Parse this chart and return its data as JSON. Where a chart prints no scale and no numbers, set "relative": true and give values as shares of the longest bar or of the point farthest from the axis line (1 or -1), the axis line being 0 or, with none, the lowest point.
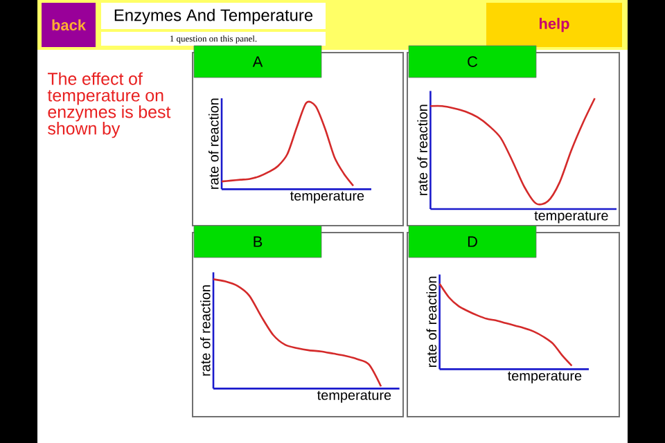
{
  "chart_data": [
    {
      "type": "other",
      "title": "Enzymes And Temperature",
      "subtitle": "1 question on this panel.",
      "annotations": [
        "back",
        "help",
        "The effect of temperature on enzymes is best shown by"
      ]
    },
    {
      "type": "line",
      "title": "A",
      "xlabel": "temperature",
      "ylabel": "rate of reaction",
      "relative": true,
      "categories": [
        null,
        null,
        null,
        null,
        null,
        null,
        null,
        null,
        null,
        null,
        null,
        null,
        null,
        null,
        null
      ],
      "series": [
        {
          "color": "#d42a2a",
          "values": [
            0.09,
            0.1,
            0.11,
            0.12,
            0.15,
            0.2,
            0.27,
            0.41,
            0.72,
            1.0,
            0.96,
            0.7,
            0.37,
            0.18,
            0.04
          ]
        }
      ]
    },
    {
      "type": "line",
      "title": "C",
      "xlabel": "temperature",
      "ylabel": "rate of reaction",
      "relative": true,
      "categories": [
        null,
        null,
        null,
        null,
        null,
        null,
        null,
        null,
        null,
        null,
        null,
        null,
        null,
        null,
        null
      ],
      "series": [
        {
          "color": "#d42a2a",
          "values": [
            0.93,
            0.93,
            0.91,
            0.88,
            0.83,
            0.75,
            0.64,
            0.43,
            0.2,
            0.05,
            0.07,
            0.24,
            0.53,
            0.78,
            1.0
          ]
        }
      ]
    },
    {
      "type": "line",
      "title": "B",
      "xlabel": "temperature",
      "ylabel": "rate of reaction",
      "relative": true,
      "categories": [
        null,
        null,
        null,
        null,
        null,
        null,
        null,
        null,
        null,
        null,
        null,
        null,
        null,
        null,
        null
      ],
      "series": [
        {
          "color": "#d42a2a",
          "values": [
            1.0,
            0.98,
            0.94,
            0.85,
            0.66,
            0.49,
            0.4,
            0.37,
            0.35,
            0.34,
            0.32,
            0.3,
            0.27,
            0.22,
            0.02
          ]
        }
      ]
    },
    {
      "type": "line",
      "title": "D",
      "xlabel": "temperature",
      "ylabel": "rate of reaction",
      "relative": true,
      "categories": [
        null,
        null,
        null,
        null,
        null,
        null,
        null,
        null,
        null,
        null,
        null,
        null,
        null,
        null,
        null
      ],
      "series": [
        {
          "color": "#d42a2a",
          "values": [
            1.0,
            0.84,
            0.74,
            0.68,
            0.63,
            0.59,
            0.57,
            0.54,
            0.51,
            0.48,
            0.44,
            0.38,
            0.3,
            0.16,
            0.04
          ]
        }
      ]
    }
  ]
}
